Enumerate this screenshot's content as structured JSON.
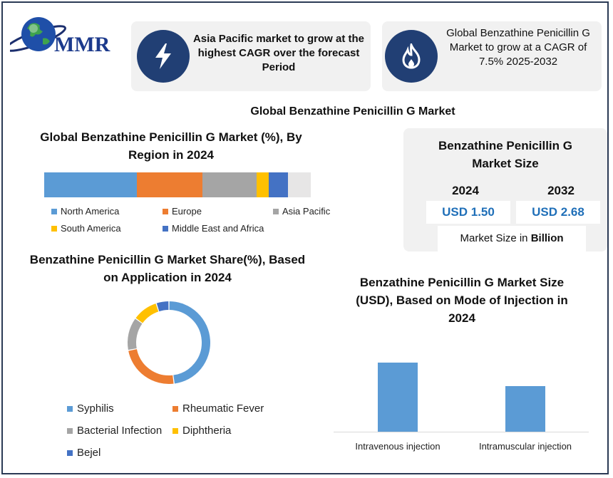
{
  "logo": {
    "text": "MMR",
    "icon": "globe-icon"
  },
  "callouts": [
    {
      "icon": "lightning-icon",
      "text": "Asia Pacific market to grow at the highest CAGR over the forecast Period"
    },
    {
      "icon": "flame-icon",
      "text": "Global Benzathine Penicillin G Market to grow at a CAGR of 7.5% 2025-2032"
    }
  ],
  "main_title": "Global Benzathine Penicillin G Market",
  "market_size": {
    "title": "Benzathine Penicillin G Market Size",
    "year1": "2024",
    "year2": "2032",
    "value1": "USD 1.50",
    "value2": "USD 2.68",
    "footer_prefix": "Market Size in ",
    "footer_unit": "Billion"
  },
  "chart_data": [
    {
      "type": "bar",
      "orientation": "horizontal-stacked",
      "title": "Global Benzathine Penicillin G Market (%), By Region in 2024",
      "series": [
        {
          "name": "North America",
          "values": [
            38
          ]
        },
        {
          "name": "Europe",
          "values": [
            27
          ]
        },
        {
          "name": "Asia Pacific",
          "values": [
            22
          ]
        },
        {
          "name": "South America",
          "values": [
            5
          ]
        },
        {
          "name": "Middle East and Africa",
          "values": [
            8
          ]
        }
      ],
      "colors": [
        "#5b9bd5",
        "#ed7d31",
        "#a5a5a5",
        "#ffc000",
        "#4472c4"
      ],
      "legend": "bottom"
    },
    {
      "type": "pie",
      "style": "donut",
      "title": "Benzathine Penicillin G Market Share(%), Based on Application in 2024",
      "categories": [
        "Syphilis",
        "Rheumatic Fever",
        "Bacterial Infection",
        "Diphtheria",
        "Bejel"
      ],
      "values": [
        48,
        24,
        13,
        10,
        5
      ],
      "colors": [
        "#5b9bd5",
        "#ed7d31",
        "#a5a5a5",
        "#ffc000",
        "#4472c4"
      ],
      "legend": "bottom"
    },
    {
      "type": "bar",
      "title": "Benzathine Penicillin G Market Size (USD), Based on Mode of Injection in 2024",
      "categories": [
        "Intravenous injection",
        "Intramuscular injection"
      ],
      "values": [
        97,
        64
      ],
      "ylim": [
        0,
        100
      ],
      "color": "#5b9bd5",
      "grid": false
    }
  ]
}
